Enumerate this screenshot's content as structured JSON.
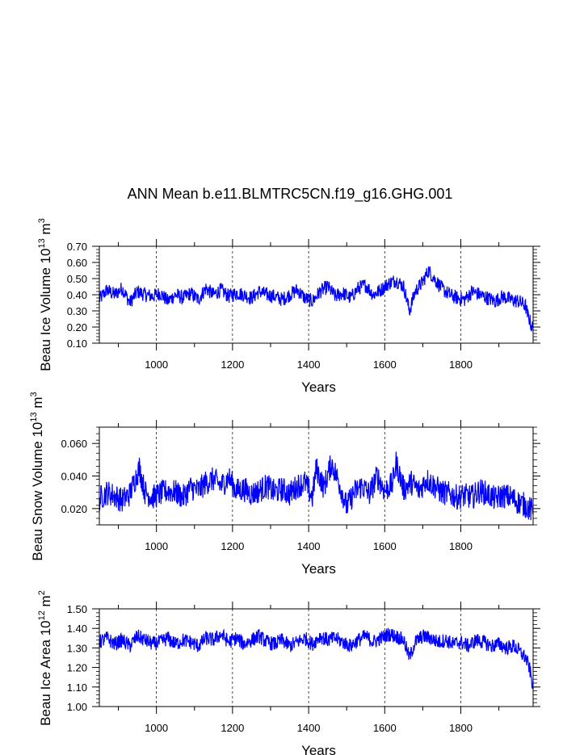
{
  "figure": {
    "title": "ANN Mean b.e11.BLMTRC5CN.f19_g16.GHG.001"
  },
  "chart_data": [
    {
      "type": "line",
      "xlabel": "Years",
      "ylabel": {
        "main": "Beau Ice Volume 10",
        "exp1": "13",
        "mid": " m",
        "exp2": "3"
      },
      "xlim": [
        850,
        1990
      ],
      "ylim": [
        0.1,
        0.7
      ],
      "yticks": [
        0.1,
        0.2,
        0.3,
        0.4,
        0.5,
        0.6,
        0.7
      ],
      "yticklabels": [
        "0.10",
        "0.20",
        "0.30",
        "0.40",
        "0.50",
        "0.60",
        "0.70"
      ],
      "xticks": [
        1000,
        1200,
        1400,
        1600,
        1800
      ],
      "xticklabels": [
        "1000",
        "1200",
        "1400",
        "1600",
        "1800"
      ],
      "grid": "vertical-dashed",
      "line_color": "#0000ff",
      "series": [
        {
          "x": [
            850,
            870,
            890,
            910,
            930,
            950,
            970,
            990,
            1010,
            1030,
            1050,
            1070,
            1090,
            1110,
            1130,
            1150,
            1170,
            1190,
            1210,
            1230,
            1250,
            1270,
            1290,
            1310,
            1330,
            1350,
            1370,
            1390,
            1410,
            1430,
            1450,
            1470,
            1490,
            1510,
            1530,
            1550,
            1570,
            1590,
            1610,
            1630,
            1650,
            1665,
            1680,
            1700,
            1715,
            1730,
            1750,
            1770,
            1790,
            1810,
            1830,
            1850,
            1870,
            1890,
            1910,
            1930,
            1950,
            1960,
            1970,
            1975,
            1980,
            1985,
            1990
          ],
          "y": [
            0.37,
            0.43,
            0.4,
            0.44,
            0.35,
            0.42,
            0.4,
            0.39,
            0.41,
            0.36,
            0.4,
            0.38,
            0.41,
            0.37,
            0.44,
            0.4,
            0.43,
            0.39,
            0.41,
            0.4,
            0.38,
            0.42,
            0.4,
            0.39,
            0.37,
            0.4,
            0.43,
            0.38,
            0.36,
            0.42,
            0.45,
            0.39,
            0.41,
            0.38,
            0.44,
            0.46,
            0.4,
            0.43,
            0.47,
            0.49,
            0.45,
            0.3,
            0.42,
            0.48,
            0.55,
            0.5,
            0.44,
            0.4,
            0.38,
            0.37,
            0.42,
            0.4,
            0.38,
            0.36,
            0.39,
            0.37,
            0.36,
            0.35,
            0.33,
            0.28,
            0.25,
            0.21,
            0.19
          ]
        }
      ]
    },
    {
      "type": "line",
      "xlabel": "Years",
      "ylabel": {
        "main": "Beau Snow Volume 10",
        "exp1": "13",
        "mid": " m",
        "exp2": "3"
      },
      "xlim": [
        850,
        1990
      ],
      "ylim": [
        0.01,
        0.07
      ],
      "yticks": [
        0.02,
        0.04,
        0.06
      ],
      "yticklabels": [
        "0.020",
        "0.040",
        "0.060"
      ],
      "xticks": [
        1000,
        1200,
        1400,
        1600,
        1800
      ],
      "xticklabels": [
        "1000",
        "1200",
        "1400",
        "1600",
        "1800"
      ],
      "grid": "vertical-dashed",
      "line_color": "#0000ff",
      "series": [
        {
          "x": [
            850,
            870,
            890,
            910,
            930,
            955,
            970,
            990,
            1010,
            1030,
            1050,
            1070,
            1090,
            1110,
            1130,
            1150,
            1170,
            1190,
            1210,
            1230,
            1250,
            1270,
            1290,
            1310,
            1330,
            1350,
            1370,
            1390,
            1410,
            1420,
            1440,
            1460,
            1480,
            1500,
            1520,
            1540,
            1560,
            1580,
            1600,
            1620,
            1630,
            1650,
            1670,
            1690,
            1710,
            1730,
            1750,
            1770,
            1790,
            1810,
            1830,
            1850,
            1870,
            1890,
            1910,
            1930,
            1950,
            1970,
            1990
          ],
          "y": [
            0.026,
            0.03,
            0.028,
            0.025,
            0.029,
            0.045,
            0.03,
            0.027,
            0.029,
            0.031,
            0.03,
            0.027,
            0.033,
            0.031,
            0.036,
            0.038,
            0.034,
            0.039,
            0.031,
            0.032,
            0.029,
            0.031,
            0.034,
            0.03,
            0.032,
            0.029,
            0.034,
            0.036,
            0.027,
            0.045,
            0.033,
            0.048,
            0.036,
            0.021,
            0.03,
            0.034,
            0.029,
            0.04,
            0.031,
            0.035,
            0.048,
            0.032,
            0.036,
            0.031,
            0.038,
            0.034,
            0.03,
            0.029,
            0.027,
            0.028,
            0.027,
            0.031,
            0.029,
            0.026,
            0.028,
            0.027,
            0.024,
            0.022,
            0.018
          ]
        }
      ]
    },
    {
      "type": "line",
      "xlabel": "Years",
      "ylabel": {
        "main": "Beau Ice Area 10",
        "exp1": "12",
        "mid": " m",
        "exp2": "2"
      },
      "xlim": [
        850,
        1990
      ],
      "ylim": [
        1.0,
        1.5
      ],
      "yticks": [
        1.0,
        1.1,
        1.2,
        1.3,
        1.4,
        1.5
      ],
      "yticklabels": [
        "1.00",
        "1.10",
        "1.20",
        "1.30",
        "1.40",
        "1.50"
      ],
      "xticks": [
        1000,
        1200,
        1400,
        1600,
        1800
      ],
      "xticklabels": [
        "1000",
        "1200",
        "1400",
        "1600",
        "1800"
      ],
      "grid": "vertical-dashed",
      "line_color": "#0000ff",
      "series": [
        {
          "x": [
            850,
            870,
            890,
            910,
            930,
            950,
            970,
            990,
            1010,
            1030,
            1050,
            1070,
            1090,
            1110,
            1130,
            1150,
            1170,
            1190,
            1210,
            1230,
            1250,
            1270,
            1290,
            1310,
            1330,
            1350,
            1370,
            1390,
            1410,
            1430,
            1450,
            1470,
            1490,
            1510,
            1530,
            1550,
            1570,
            1590,
            1610,
            1630,
            1650,
            1665,
            1680,
            1700,
            1720,
            1740,
            1760,
            1780,
            1800,
            1820,
            1840,
            1860,
            1880,
            1900,
            1920,
            1940,
            1960,
            1970,
            1980,
            1985,
            1990
          ],
          "y": [
            1.33,
            1.35,
            1.32,
            1.34,
            1.31,
            1.36,
            1.34,
            1.32,
            1.33,
            1.35,
            1.32,
            1.34,
            1.33,
            1.31,
            1.35,
            1.34,
            1.37,
            1.33,
            1.35,
            1.32,
            1.34,
            1.36,
            1.33,
            1.32,
            1.34,
            1.31,
            1.33,
            1.35,
            1.32,
            1.36,
            1.34,
            1.35,
            1.33,
            1.31,
            1.34,
            1.36,
            1.33,
            1.35,
            1.37,
            1.36,
            1.34,
            1.25,
            1.33,
            1.36,
            1.35,
            1.33,
            1.34,
            1.32,
            1.33,
            1.31,
            1.34,
            1.33,
            1.31,
            1.32,
            1.3,
            1.31,
            1.27,
            1.25,
            1.2,
            1.15,
            1.1
          ]
        }
      ]
    }
  ]
}
